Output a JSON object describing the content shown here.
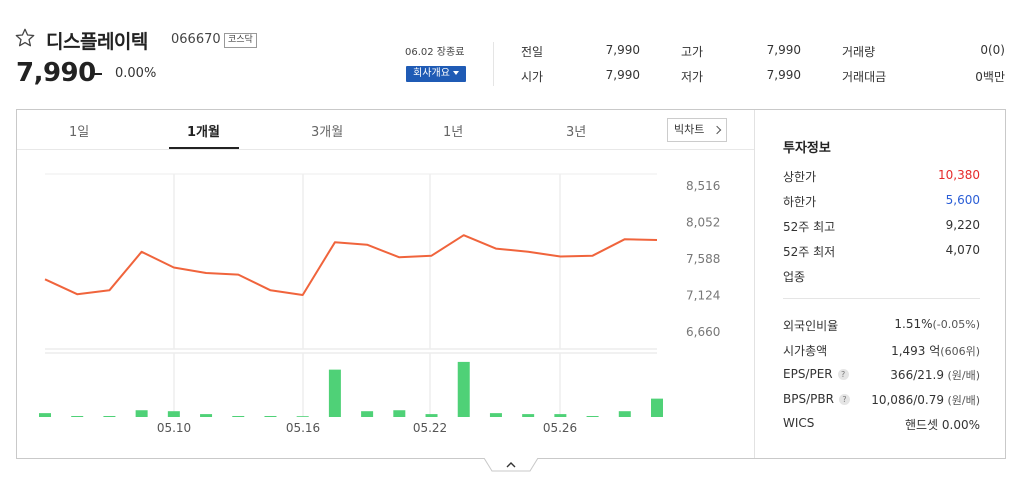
{
  "stock": {
    "name": "디스플레이텍",
    "code": "066670",
    "market_badge": "코스닥",
    "price": "7,990",
    "change_pct": "0.00%",
    "date_label": "06.02 장종료",
    "company_button": "회사개요"
  },
  "quotes": [
    {
      "label": "전일",
      "value": "7,990"
    },
    {
      "label": "고가",
      "value": "7,990"
    },
    {
      "label": "거래량",
      "value": "0(0)"
    },
    {
      "label": "시가",
      "value": "7,990"
    },
    {
      "label": "저가",
      "value": "7,990"
    },
    {
      "label": "거래대금",
      "value": "0백만"
    }
  ],
  "tabs": [
    "1일",
    "1개월",
    "3개월",
    "1년",
    "3년"
  ],
  "active_tab": "1개월",
  "bigchart_label": "빅차트",
  "chart_data": {
    "type": "line",
    "y_ticks": [
      "8,516",
      "8,052",
      "7,588",
      "7,124",
      "6,660"
    ],
    "ylim": [
      6660,
      8516
    ],
    "x_ticks": [
      "05.10",
      "05.16",
      "05.22",
      "05.26"
    ],
    "price_series": {
      "values": [
        7330,
        7140,
        7190,
        7680,
        7480,
        7410,
        7390,
        7190,
        7130,
        7800,
        7770,
        7610,
        7630,
        7890,
        7720,
        7680,
        7620,
        7630,
        7840,
        7830
      ],
      "color": "#f0643c"
    },
    "volume_series": {
      "values": [
        4,
        1,
        1,
        7,
        6,
        3,
        1,
        1,
        0,
        49,
        6,
        7,
        3,
        57,
        4,
        3,
        3,
        1,
        6,
        19
      ],
      "color": "#4fd177"
    }
  },
  "info": {
    "title": "투자정보",
    "rows_top": [
      {
        "label": "상한가",
        "value": "10,380",
        "color": "red"
      },
      {
        "label": "하한가",
        "value": "5,600",
        "color": "blue"
      },
      {
        "label": "52주 최고",
        "value": "9,220"
      },
      {
        "label": "52주 최저",
        "value": "4,070"
      },
      {
        "label": "업종",
        "value": ""
      }
    ],
    "rows_bottom": [
      {
        "label": "외국인비율",
        "value": "1.51%",
        "sub": "(-0.05%)",
        "help": false
      },
      {
        "label": "시가총액",
        "value": "1,493 억",
        "sub": "(606위)",
        "help": false
      },
      {
        "label": "EPS/PER",
        "value": "366/21.9",
        "sub": " (원/배)",
        "help": true
      },
      {
        "label": "BPS/PBR",
        "value": "10,086/0.79",
        "sub": " (원/배)",
        "help": true
      },
      {
        "label": "WICS",
        "value": "핸드셋 0.00%",
        "sub": "",
        "help": false
      }
    ],
    "help_glyph": "?"
  }
}
